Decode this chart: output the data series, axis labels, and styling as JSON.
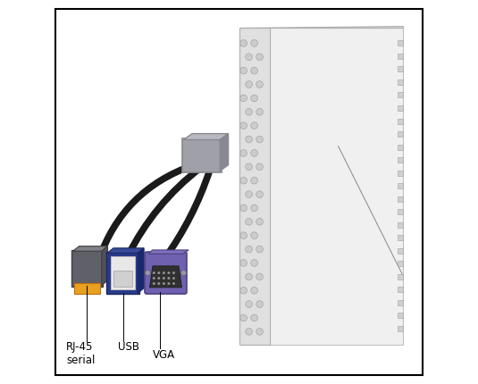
{
  "title": "",
  "bg_color": "#ffffff",
  "border_color": "#000000",
  "border_linewidth": 1.5,
  "fig_bg": "#ffffff",
  "labels": [
    "RJ-45\nserial",
    "USB",
    "VGA"
  ],
  "label_fontsize": 8.5,
  "server_color": "#d8d8d8",
  "server_edge": "#aaaaaa",
  "dongle_color": "#a0a0a8",
  "dongle_edge": "#888890",
  "cable_color": "#1a1a1a",
  "rj45_body_color": "#606068",
  "rj45_tip_color": "#e8a020",
  "usb_body_color": "#2a3a8a",
  "usb_port_color": "#e8e8e8",
  "vga_body_color": "#7060b0",
  "vga_port_color": "#404040"
}
